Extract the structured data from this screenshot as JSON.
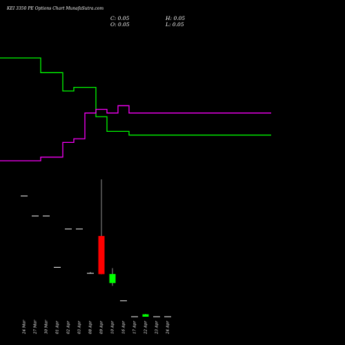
{
  "header": {
    "title": "KEI 3350 PE Options Chart MunafaSutra.com",
    "close": "C: 0.05",
    "open": "O: 0.05",
    "high": "H: 0.05",
    "low": "L: 0.05"
  },
  "chart_data": {
    "type": "candlestick",
    "categories": [
      "24 Mar",
      "27 Mar",
      "30 Mar",
      "01 Apr",
      "02 Apr",
      "03 Apr",
      "08 Apr",
      "09 Apr",
      "10 Apr",
      "16 Apr",
      "17 Apr",
      "22 Apr",
      "23 Apr",
      "24 Apr"
    ],
    "tick_labels": [
      "24 Mar",
      "27 Mar",
      "30 Mar",
      "01 Apr",
      "02 Apr",
      "03 Apr",
      "08 Apr",
      "09 Apr",
      "10 Apr",
      "16 Apr",
      "17 Apr",
      "22 Apr",
      "23 Apr",
      "24 Apr"
    ],
    "candles": [
      {
        "date": "24 Mar",
        "open": 0,
        "high": 0,
        "low": 0,
        "close": 0
      },
      {
        "date": "27 Mar",
        "open": 0,
        "high": 0,
        "low": 0,
        "close": 0
      },
      {
        "date": "30 Mar",
        "open": 0,
        "high": 0,
        "low": 0,
        "close": 0
      },
      {
        "date": "01 Apr",
        "open": 35.5,
        "high": 35.5,
        "low": 35.5,
        "close": 35.5
      },
      {
        "date": "02 Apr",
        "open": 63.0,
        "high": 63.0,
        "low": 63.0,
        "close": 63.0
      },
      {
        "date": "03 Apr",
        "open": 63.0,
        "high": 63.0,
        "low": 63.0,
        "close": 63.0
      },
      {
        "date": "08 Apr",
        "open": 31.2,
        "high": 32.0,
        "low": 31.2,
        "close": 31.2
      },
      {
        "date": "09 Apr",
        "open": 58.0,
        "high": 98.6,
        "low": 30.5,
        "close": 30.6
      },
      {
        "date": "10 Apr",
        "open": 24.2,
        "high": 34.9,
        "low": 22.2,
        "close": 30.7
      },
      {
        "date": "16 Apr",
        "open": 11.5,
        "high": 11.5,
        "low": 11.5,
        "close": 11.5
      },
      {
        "date": "17 Apr",
        "open": 0.05,
        "high": 0.05,
        "low": 0.05,
        "close": 0.05
      },
      {
        "date": "22 Apr",
        "open": 0.05,
        "high": 2.0,
        "low": 0.05,
        "close": 1.8
      },
      {
        "date": "23 Apr",
        "open": 0.05,
        "high": 0.05,
        "low": 0.05,
        "close": 0.05
      },
      {
        "date": "24 Apr",
        "open": 0.05,
        "high": 0.05,
        "low": 0.05,
        "close": 0.05
      }
    ],
    "series": [
      {
        "color": "#00ff00",
        "values": [
          0.84,
          0.84,
          0.8,
          0.8,
          0.75,
          0.76,
          0.76,
          0.68,
          0.64,
          0.64,
          0.63,
          0.63,
          0.63,
          0.63
        ]
      },
      {
        "color": "#ff00ff",
        "values": [
          0.56,
          0.56,
          0.57,
          0.57,
          0.61,
          0.62,
          0.69,
          0.7,
          0.69,
          0.71,
          0.69,
          0.69,
          0.69,
          0.69
        ]
      }
    ],
    "colors": {
      "background": "#000000",
      "up": "#00ff00",
      "down": "#ff0000",
      "doji": "#ffffff"
    },
    "grid": false
  }
}
